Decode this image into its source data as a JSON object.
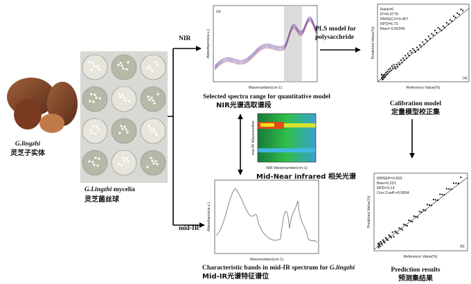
{
  "fruiting_body": {
    "label": "G.lingzhi",
    "label_cn": "灵芝子实体"
  },
  "mycelia": {
    "label_italic": "G.Lingzhi",
    "label": "mycelia",
    "label_cn": "灵芝菌丝球"
  },
  "branches": {
    "nir": "NIR",
    "mid_ir": "mid-IR"
  },
  "nir_chart": {
    "panel": "(a)",
    "y_label": "Absorbance(a.u.)",
    "x_label": "Wavenumber(cm-1)",
    "caption": "Selected spectra range for quantitative model",
    "caption_cn": "NIR光谱选取谱段"
  },
  "pls": {
    "line1": "PLS model  for",
    "line2": "polysacchride"
  },
  "calibration": {
    "stats": [
      "Rank=6",
      "R²=0.9779",
      "RMSECV=0.467",
      "RPD=6.73",
      "Bias=-0.00245"
    ],
    "panel": "(a)",
    "y_label": "Predicted Value(%)",
    "x_label": "Reference Value(%)",
    "caption": "Calibration model",
    "caption_cn": "定量模型校正集"
  },
  "correlation": {
    "y_label": "mid-IR Wavenumber",
    "x_label": "NIR Wavenumber(cm-1)",
    "caption": "Mid-Near infrared 相关光谱"
  },
  "mid_ir": {
    "y_label": "Absorbance(a.u.)",
    "x_label": "Wavenumber(cm-1)",
    "caption": "Characteristic bands in mid-IR spectrum for",
    "caption_italic": "G.lingzhi",
    "caption_cn": "Mid-IR光谱特征谱位"
  },
  "prediction": {
    "stats": [
      "RMSEP=0.603",
      "Bias=0.231",
      "RPD=3.13",
      "Corr.Coeff.=0.9554"
    ],
    "panel": "(b)",
    "y_label": "Predicted Value(%)",
    "x_label": "Reference Value(%)",
    "caption": "Prediction results",
    "caption_cn": "预测集结果"
  }
}
